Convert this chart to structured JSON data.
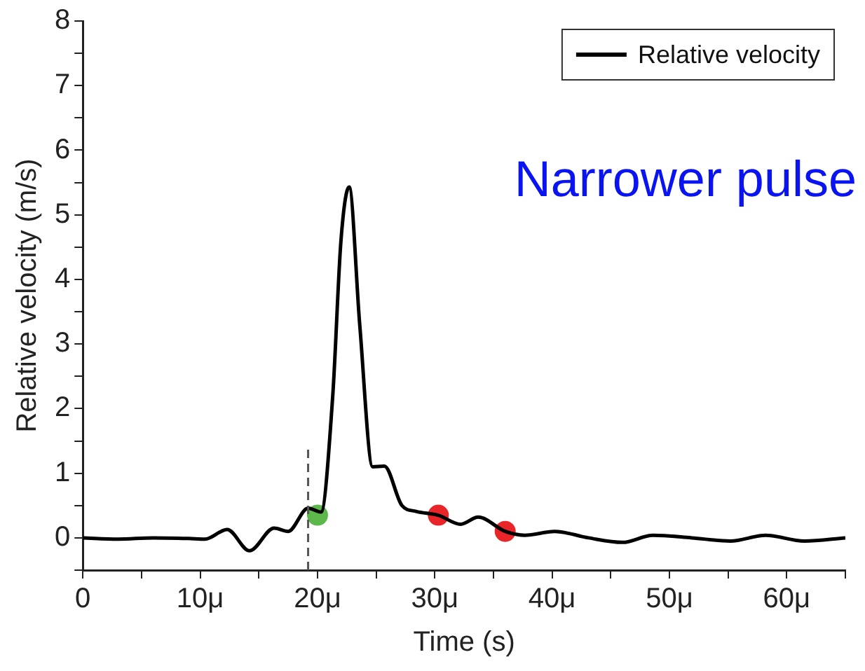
{
  "chart_data": {
    "type": "line",
    "xlabel": "Time (s)",
    "ylabel": "Relative velocity (m/s)",
    "annotations": [
      "Narrower pulse"
    ],
    "xlim": [
      0,
      65
    ],
    "xticks": [
      0,
      {
        "value": 5,
        "label": null
      },
      {
        "value": 10,
        "label": "10μ"
      },
      {
        "value": 15,
        "label": null
      },
      {
        "value": 20,
        "label": "20μ"
      },
      {
        "value": 25,
        "label": null
      },
      {
        "value": 30,
        "label": "30μ"
      },
      {
        "value": 35,
        "label": null
      },
      {
        "value": 40,
        "label": "40μ"
      },
      {
        "value": 45,
        "label": null
      },
      {
        "value": 50,
        "label": "50μ"
      },
      {
        "value": 55,
        "label": null
      },
      {
        "value": 60,
        "label": "60μ"
      },
      {
        "value": 65,
        "label": null
      }
    ],
    "ylim": [
      -0.5,
      8
    ],
    "yticks": [
      {
        "value": -0.5,
        "label": null
      },
      0,
      {
        "value": 0.5,
        "label": null
      },
      1,
      {
        "value": 1.5,
        "label": null
      },
      2,
      {
        "value": 2.5,
        "label": null
      },
      3,
      {
        "value": 3.5,
        "label": null
      },
      4,
      {
        "value": 4.5,
        "label": null
      },
      5,
      {
        "value": 5.5,
        "label": null
      },
      6,
      {
        "value": 6.5,
        "label": null
      },
      7,
      {
        "value": 7.5,
        "label": null
      },
      8
    ],
    "grid": false,
    "legend": "top right",
    "marker": "none",
    "line_style": "solid",
    "ref_lines": [
      {
        "axis": "x",
        "value": 19.2,
        "color": "#555555",
        "line_style": "dashed"
      }
    ],
    "series": [
      {
        "name": "Relative velocity",
        "color": "#000000",
        "x": [
          0,
          3,
          6,
          9,
          10.4,
          12.3,
          14.2,
          16.3,
          17.5,
          19.2,
          20.3,
          21.3,
          22,
          22.7,
          23.6,
          24.7,
          25.7,
          27.2,
          28.4,
          30.3,
          32.2,
          33.7,
          36,
          37.7,
          40.2,
          43.1,
          46,
          48.6,
          51.9,
          55.2,
          58.2,
          61.5,
          65
        ],
        "values": [
          0,
          -0.02,
          0,
          -0.01,
          -0.02,
          0.13,
          -0.2,
          0.15,
          0.1,
          0.46,
          0.4,
          2.2,
          4.6,
          5.43,
          3.3,
          1.1,
          1.11,
          0.5,
          0.41,
          0.35,
          0.21,
          0.32,
          0.1,
          0.04,
          0.1,
          0,
          -0.07,
          0.04,
          0,
          -0.05,
          0.04,
          -0.05,
          0
        ]
      },
      {
        "type": "scatter",
        "color": "#5cb84a",
        "x": [
          20
        ],
        "values": [
          0.35
        ],
        "marker": "circle"
      },
      {
        "type": "scatter",
        "color": "#e8262a",
        "x": [
          30.3
        ],
        "values": [
          0.35
        ],
        "marker": "circle"
      },
      {
        "type": "scatter",
        "color": "#e8262a",
        "x": [
          36
        ],
        "values": [
          0.1
        ],
        "marker": "circle"
      }
    ]
  }
}
